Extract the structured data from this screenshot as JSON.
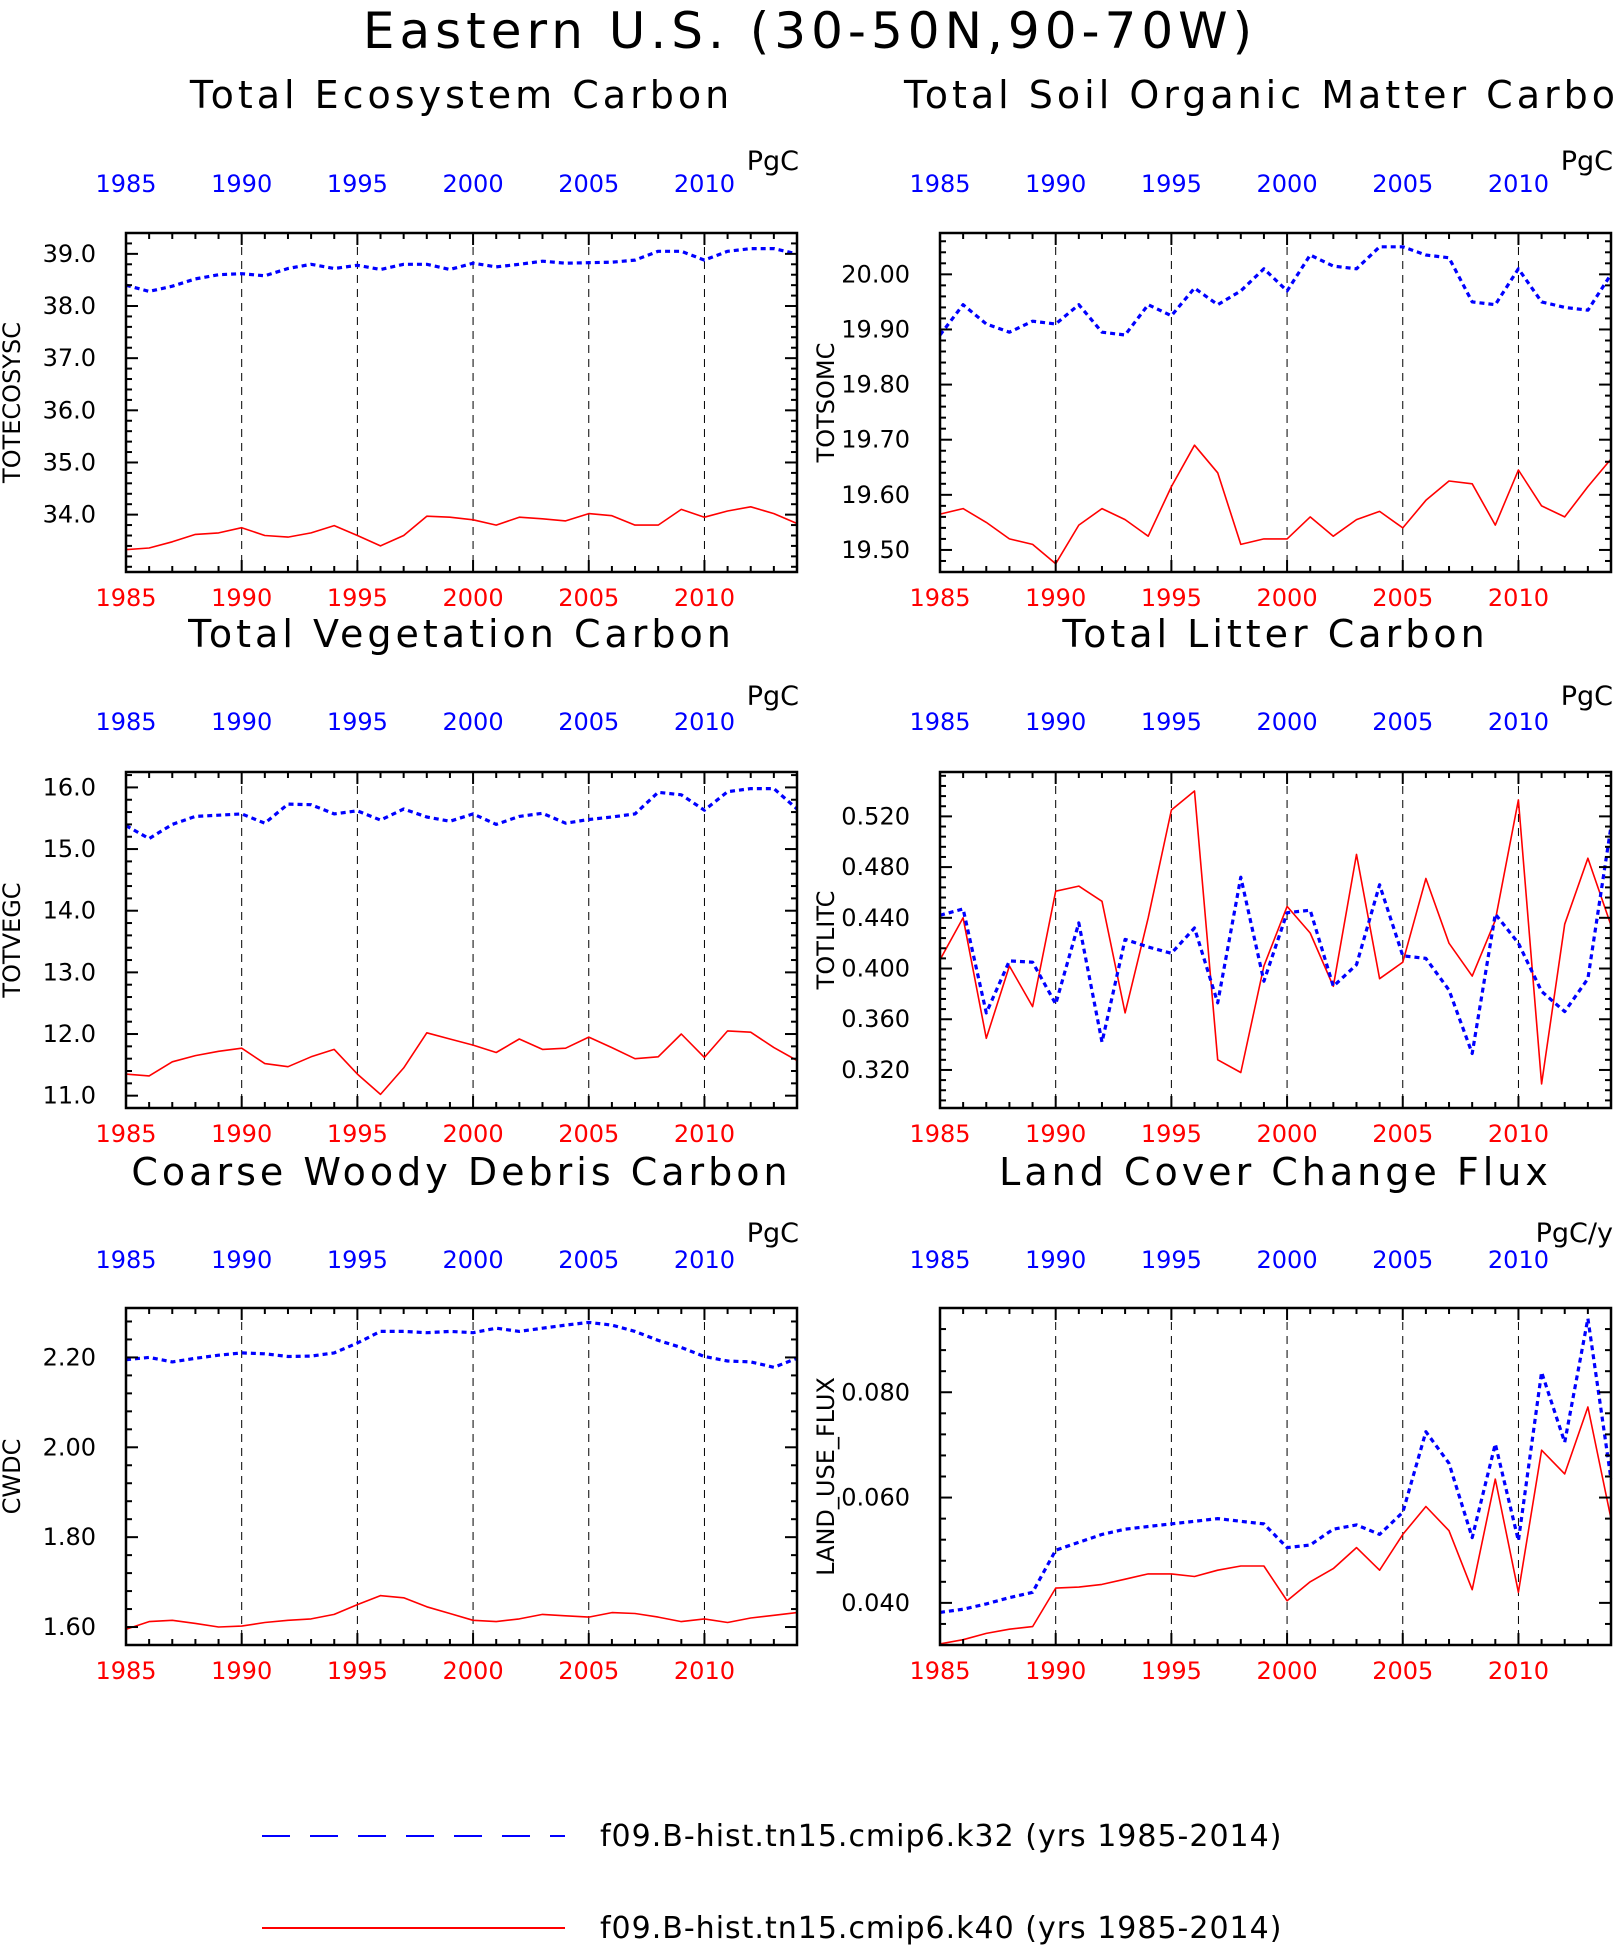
{
  "title": "Eastern U.S. (30-50N,90-70W)",
  "legend": [
    {
      "label": "f09.B-hist.tn15.cmip6.k32 (yrs 1985-2014)",
      "color": "#0000ff",
      "style": "dashed"
    },
    {
      "label": "f09.B-hist.tn15.cmip6.k40 (yrs 1985-2014)",
      "color": "#ff0000",
      "style": "solid"
    }
  ],
  "colors": {
    "k32": "#0000ff",
    "k40": "#ff0000",
    "grid": "#000000"
  },
  "chart_data": [
    {
      "type": "line",
      "title": "Total Ecosystem Carbon",
      "units": "PgC",
      "ylabel": "TOTECOSYSC",
      "xlim": [
        1985,
        2014
      ],
      "ylim": [
        32.9,
        39.4
      ],
      "yticks": [
        34.0,
        35.0,
        36.0,
        37.0,
        38.0,
        39.0
      ],
      "ytick_labels": [
        "34.0",
        "35.0",
        "36.0",
        "37.0",
        "38.0",
        "39.0"
      ],
      "xticks": [
        1985,
        1990,
        1995,
        2000,
        2005,
        2010
      ],
      "xtick_labels": [
        "1985",
        "1990",
        "1995",
        "2000",
        "2005",
        "2010"
      ],
      "x": [
        1985,
        1986,
        1987,
        1988,
        1989,
        1990,
        1991,
        1992,
        1993,
        1994,
        1995,
        1996,
        1997,
        1998,
        1999,
        2000,
        2001,
        2002,
        2003,
        2004,
        2005,
        2006,
        2007,
        2008,
        2009,
        2010,
        2011,
        2012,
        2013,
        2014
      ],
      "series": [
        {
          "name": "f09.B-hist.tn15.cmip6.k32",
          "color": "#0000ff",
          "style": "dashed",
          "values": [
            38.4,
            38.28,
            38.38,
            38.52,
            38.6,
            38.62,
            38.58,
            38.72,
            38.8,
            38.72,
            38.78,
            38.7,
            38.8,
            38.8,
            38.7,
            38.82,
            38.75,
            38.8,
            38.86,
            38.82,
            38.83,
            38.84,
            38.88,
            39.05,
            39.05,
            38.88,
            39.05,
            39.1,
            39.1,
            39.0
          ]
        },
        {
          "name": "f09.B-hist.tn15.cmip6.k40",
          "color": "#ff0000",
          "style": "solid",
          "values": [
            33.33,
            33.36,
            33.48,
            33.62,
            33.65,
            33.75,
            33.6,
            33.57,
            33.65,
            33.79,
            33.6,
            33.4,
            33.6,
            33.97,
            33.95,
            33.9,
            33.8,
            33.95,
            33.92,
            33.88,
            34.02,
            33.98,
            33.8,
            33.8,
            34.1,
            33.95,
            34.07,
            34.15,
            34.02,
            33.83
          ]
        }
      ]
    },
    {
      "type": "line",
      "title": "Total Soil Organic Matter Carbon",
      "units": "PgC",
      "ylabel": "TOTSOMC",
      "xlim": [
        1985,
        2014
      ],
      "ylim": [
        19.46,
        20.075
      ],
      "yticks": [
        19.5,
        19.6,
        19.7,
        19.8,
        19.9,
        20.0
      ],
      "ytick_labels": [
        "19.50",
        "19.60",
        "19.70",
        "19.80",
        "19.90",
        "20.00"
      ],
      "xticks": [
        1985,
        1990,
        1995,
        2000,
        2005,
        2010
      ],
      "xtick_labels": [
        "1985",
        "1990",
        "1995",
        "2000",
        "2005",
        "2010"
      ],
      "x": [
        1985,
        1986,
        1987,
        1988,
        1989,
        1990,
        1991,
        1992,
        1993,
        1994,
        1995,
        1996,
        1997,
        1998,
        1999,
        2000,
        2001,
        2002,
        2003,
        2004,
        2005,
        2006,
        2007,
        2008,
        2009,
        2010,
        2011,
        2012,
        2013,
        2014
      ],
      "series": [
        {
          "name": "f09.B-hist.tn15.cmip6.k32",
          "color": "#0000ff",
          "style": "dashed",
          "values": [
            19.89,
            19.945,
            19.91,
            19.895,
            19.915,
            19.91,
            19.945,
            19.895,
            19.89,
            19.945,
            19.925,
            19.975,
            19.945,
            19.97,
            20.01,
            19.97,
            20.035,
            20.015,
            20.01,
            20.05,
            20.05,
            20.035,
            20.03,
            19.95,
            19.945,
            20.01,
            19.95,
            19.94,
            19.935,
            20.0
          ]
        },
        {
          "name": "f09.B-hist.tn15.cmip6.k40",
          "color": "#ff0000",
          "style": "solid",
          "values": [
            19.565,
            19.575,
            19.55,
            19.52,
            19.51,
            19.475,
            19.545,
            19.575,
            19.555,
            19.525,
            19.615,
            19.69,
            19.64,
            19.51,
            19.52,
            19.52,
            19.56,
            19.525,
            19.555,
            19.57,
            19.54,
            19.59,
            19.625,
            19.62,
            19.545,
            19.645,
            19.58,
            19.56,
            19.615,
            19.665
          ]
        }
      ]
    },
    {
      "type": "line",
      "title": "Total Vegetation Carbon",
      "units": "PgC",
      "ylabel": "TOTVEGC",
      "xlim": [
        1985,
        2014
      ],
      "ylim": [
        10.8,
        16.25
      ],
      "yticks": [
        11.0,
        12.0,
        13.0,
        14.0,
        15.0,
        16.0
      ],
      "ytick_labels": [
        "11.0",
        "12.0",
        "13.0",
        "14.0",
        "15.0",
        "16.0"
      ],
      "xticks": [
        1985,
        1990,
        1995,
        2000,
        2005,
        2010
      ],
      "xtick_labels": [
        "1985",
        "1990",
        "1995",
        "2000",
        "2005",
        "2010"
      ],
      "x": [
        1985,
        1986,
        1987,
        1988,
        1989,
        1990,
        1991,
        1992,
        1993,
        1994,
        1995,
        1996,
        1997,
        1998,
        1999,
        2000,
        2001,
        2002,
        2003,
        2004,
        2005,
        2006,
        2007,
        2008,
        2009,
        2010,
        2011,
        2012,
        2013,
        2014
      ],
      "series": [
        {
          "name": "f09.B-hist.tn15.cmip6.k32",
          "color": "#0000ff",
          "style": "dashed",
          "values": [
            15.38,
            15.17,
            15.4,
            15.53,
            15.55,
            15.57,
            15.42,
            15.73,
            15.72,
            15.57,
            15.62,
            15.47,
            15.65,
            15.52,
            15.45,
            15.57,
            15.4,
            15.53,
            15.58,
            15.42,
            15.48,
            15.52,
            15.57,
            15.92,
            15.88,
            15.63,
            15.93,
            15.98,
            15.98,
            15.65
          ]
        },
        {
          "name": "f09.B-hist.tn15.cmip6.k40",
          "color": "#ff0000",
          "style": "solid",
          "values": [
            11.35,
            11.32,
            11.55,
            11.65,
            11.72,
            11.77,
            11.52,
            11.47,
            11.63,
            11.75,
            11.35,
            11.02,
            11.45,
            12.02,
            11.92,
            11.82,
            11.7,
            11.92,
            11.75,
            11.77,
            11.95,
            11.78,
            11.6,
            11.63,
            12.0,
            11.62,
            12.05,
            12.03,
            11.78,
            11.57
          ]
        }
      ]
    },
    {
      "type": "line",
      "title": "Total Litter Carbon",
      "units": "PgC",
      "ylabel": "TOTLITC",
      "xlim": [
        1985,
        2014
      ],
      "ylim": [
        0.29,
        0.555
      ],
      "yticks": [
        0.32,
        0.36,
        0.4,
        0.44,
        0.48,
        0.52
      ],
      "ytick_labels": [
        "0.320",
        "0.360",
        "0.400",
        "0.440",
        "0.480",
        "0.520"
      ],
      "xticks": [
        1985,
        1990,
        1995,
        2000,
        2005,
        2010
      ],
      "xtick_labels": [
        "1985",
        "1990",
        "1995",
        "2000",
        "2005",
        "2010"
      ],
      "x": [
        1985,
        1986,
        1987,
        1988,
        1989,
        1990,
        1991,
        1992,
        1993,
        1994,
        1995,
        1996,
        1997,
        1998,
        1999,
        2000,
        2001,
        2002,
        2003,
        2004,
        2005,
        2006,
        2007,
        2008,
        2009,
        2010,
        2011,
        2012,
        2013,
        2014
      ],
      "series": [
        {
          "name": "f09.B-hist.tn15.cmip6.k32",
          "color": "#0000ff",
          "style": "dashed",
          "values": [
            0.442,
            0.447,
            0.365,
            0.406,
            0.405,
            0.372,
            0.436,
            0.342,
            0.423,
            0.417,
            0.412,
            0.432,
            0.373,
            0.472,
            0.39,
            0.444,
            0.446,
            0.386,
            0.403,
            0.466,
            0.41,
            0.408,
            0.383,
            0.333,
            0.443,
            0.42,
            0.382,
            0.366,
            0.392,
            0.512
          ]
        },
        {
          "name": "f09.B-hist.tn15.cmip6.k40",
          "color": "#ff0000",
          "style": "solid",
          "values": [
            0.407,
            0.44,
            0.345,
            0.402,
            0.37,
            0.461,
            0.465,
            0.453,
            0.365,
            0.44,
            0.525,
            0.54,
            0.328,
            0.318,
            0.402,
            0.449,
            0.428,
            0.386,
            0.49,
            0.392,
            0.405,
            0.471,
            0.42,
            0.394,
            0.438,
            0.533,
            0.309,
            0.435,
            0.487,
            0.434
          ]
        }
      ]
    },
    {
      "type": "line",
      "title": "Coarse Woody Debris Carbon",
      "units": "PgC",
      "ylabel": "CWDC",
      "xlim": [
        1985,
        2014
      ],
      "ylim": [
        1.56,
        2.31
      ],
      "yticks": [
        1.6,
        1.8,
        2.0,
        2.2
      ],
      "ytick_labels": [
        "1.60",
        "1.80",
        "2.00",
        "2.20"
      ],
      "xticks": [
        1985,
        1990,
        1995,
        2000,
        2005,
        2010
      ],
      "xtick_labels": [
        "1985",
        "1990",
        "1995",
        "2000",
        "2005",
        "2010"
      ],
      "x": [
        1985,
        1986,
        1987,
        1988,
        1989,
        1990,
        1991,
        1992,
        1993,
        1994,
        1995,
        1996,
        1997,
        1998,
        1999,
        2000,
        2001,
        2002,
        2003,
        2004,
        2005,
        2006,
        2007,
        2008,
        2009,
        2010,
        2011,
        2012,
        2013,
        2014
      ],
      "series": [
        {
          "name": "f09.B-hist.tn15.cmip6.k32",
          "color": "#0000ff",
          "style": "dashed",
          "values": [
            2.195,
            2.2,
            2.19,
            2.198,
            2.205,
            2.21,
            2.208,
            2.202,
            2.203,
            2.21,
            2.232,
            2.258,
            2.258,
            2.255,
            2.258,
            2.255,
            2.265,
            2.258,
            2.265,
            2.272,
            2.278,
            2.272,
            2.258,
            2.238,
            2.222,
            2.202,
            2.192,
            2.19,
            2.178,
            2.198
          ]
        },
        {
          "name": "f09.B-hist.tn15.cmip6.k40",
          "color": "#ff0000",
          "style": "solid",
          "values": [
            1.595,
            1.612,
            1.615,
            1.608,
            1.6,
            1.602,
            1.61,
            1.615,
            1.618,
            1.628,
            1.65,
            1.67,
            1.665,
            1.645,
            1.63,
            1.615,
            1.612,
            1.618,
            1.628,
            1.625,
            1.622,
            1.632,
            1.63,
            1.622,
            1.612,
            1.618,
            1.61,
            1.62,
            1.626,
            1.632
          ]
        }
      ]
    },
    {
      "type": "line",
      "title": "Land Cover Change Flux",
      "units": "PgC/y",
      "ylabel": "LAND_USE_FLUX",
      "xlim": [
        1985,
        2014
      ],
      "ylim": [
        0.032,
        0.096
      ],
      "yticks": [
        0.04,
        0.06,
        0.08
      ],
      "ytick_labels": [
        "0.040",
        "0.060",
        "0.080"
      ],
      "xticks": [
        1985,
        1990,
        1995,
        2000,
        2005,
        2010
      ],
      "xtick_labels": [
        "1985",
        "1990",
        "1995",
        "2000",
        "2005",
        "2010"
      ],
      "x": [
        1985,
        1986,
        1987,
        1988,
        1989,
        1990,
        1991,
        1992,
        1993,
        1994,
        1995,
        1996,
        1997,
        1998,
        1999,
        2000,
        2001,
        2002,
        2003,
        2004,
        2005,
        2006,
        2007,
        2008,
        2009,
        2010,
        2011,
        2012,
        2013,
        2014
      ],
      "series": [
        {
          "name": "f09.B-hist.tn15.cmip6.k32",
          "color": "#0000ff",
          "style": "dashed",
          "values": [
            0.0382,
            0.0388,
            0.0398,
            0.041,
            0.042,
            0.05,
            0.0515,
            0.053,
            0.054,
            0.0545,
            0.055,
            0.0555,
            0.056,
            0.0555,
            0.055,
            0.0505,
            0.051,
            0.054,
            0.0548,
            0.053,
            0.0572,
            0.0725,
            0.0665,
            0.0524,
            0.0702,
            0.0518,
            0.0838,
            0.0705,
            0.094,
            0.0635
          ]
        },
        {
          "name": "f09.B-hist.tn15.cmip6.k40",
          "color": "#ff0000",
          "style": "solid",
          "values": [
            0.0322,
            0.033,
            0.0342,
            0.035,
            0.0355,
            0.0428,
            0.043,
            0.0435,
            0.0445,
            0.0455,
            0.0455,
            0.045,
            0.0462,
            0.047,
            0.047,
            0.0404,
            0.044,
            0.0465,
            0.0505,
            0.0462,
            0.053,
            0.0583,
            0.0537,
            0.0425,
            0.0635,
            0.042,
            0.069,
            0.0645,
            0.0772,
            0.056
          ]
        }
      ]
    }
  ]
}
